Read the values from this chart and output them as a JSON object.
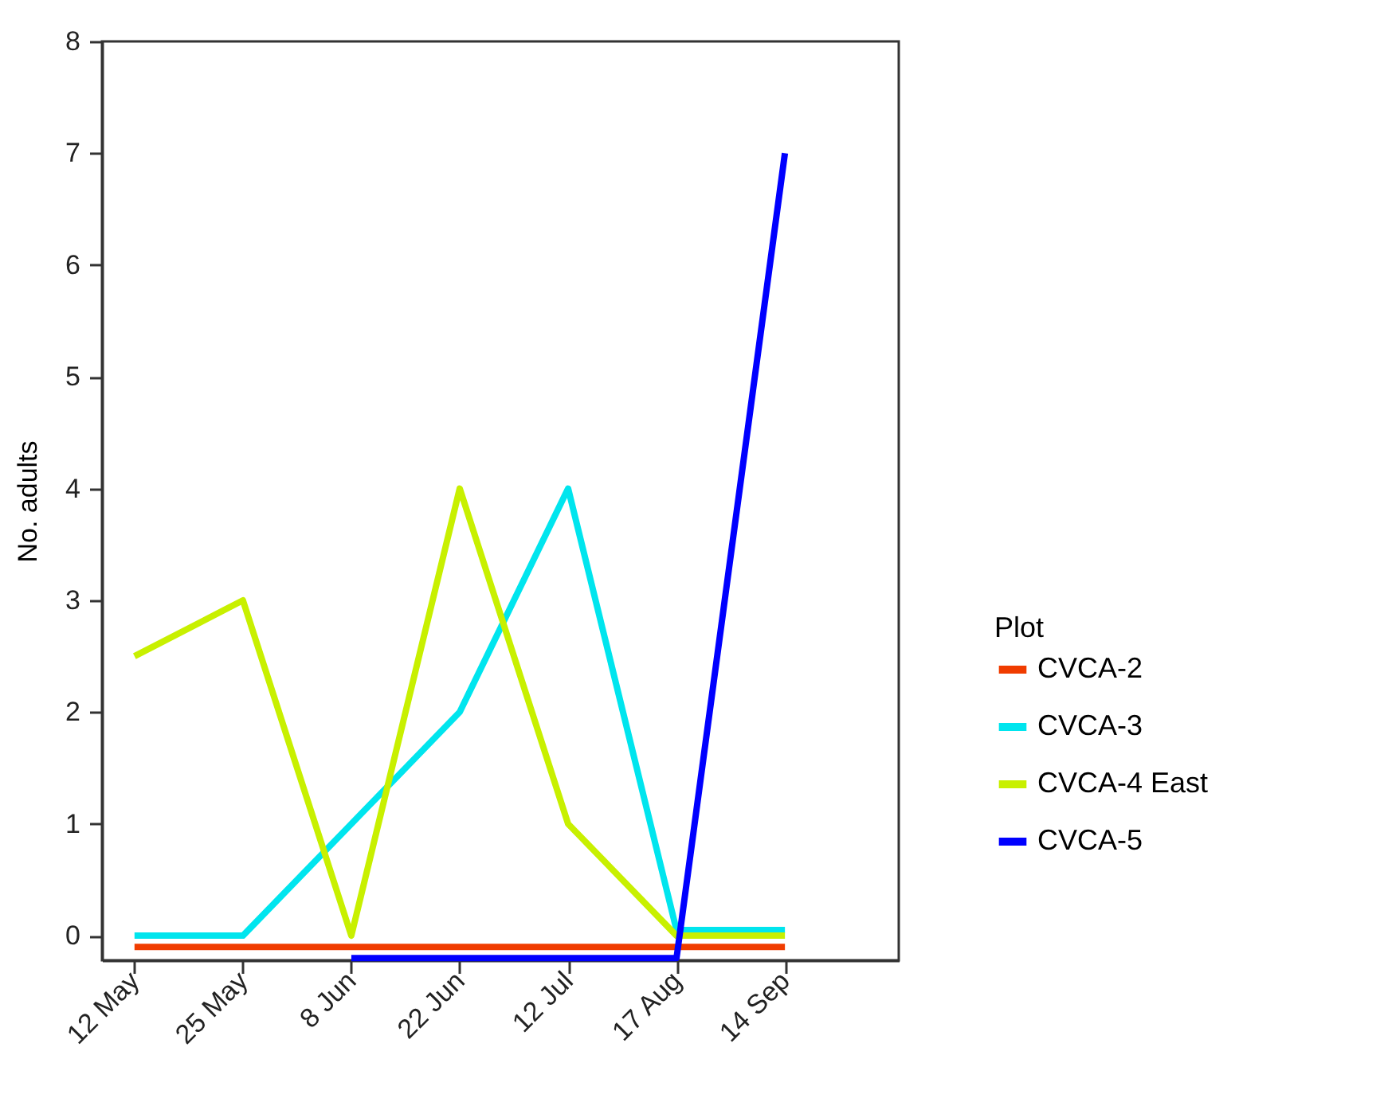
{
  "chart_data": {
    "type": "line",
    "ylabel": "No. adults",
    "legend_title": "Plot",
    "categories": [
      "12 May",
      "25 May",
      "8 Jun",
      "22 Jun",
      "12 Jul",
      "17 Aug",
      "14 Sep"
    ],
    "series": [
      {
        "name": "CVCA-2",
        "color": "#f03c00",
        "values": [
          -0.1,
          -0.1,
          -0.1,
          -0.1,
          -0.1,
          -0.1,
          -0.1
        ]
      },
      {
        "name": "CVCA-3",
        "color": "#00e5ee",
        "values": [
          0,
          0,
          1,
          2,
          4,
          0.05,
          0.05
        ]
      },
      {
        "name": "CVCA-4 East",
        "color": "#c8f000",
        "values": [
          2.5,
          3,
          0,
          4,
          1,
          0,
          0
        ]
      },
      {
        "name": "CVCA-5",
        "color": "#0000ff",
        "values": [
          null,
          null,
          -0.2,
          -0.2,
          -0.2,
          -0.2,
          7
        ]
      }
    ],
    "ylim": [
      -0.22,
      8
    ],
    "yticks": [
      0,
      1,
      2,
      3,
      4,
      5,
      6,
      7,
      8
    ],
    "grid": false,
    "legend": "right",
    "marker": "none",
    "line_style": "solid"
  }
}
